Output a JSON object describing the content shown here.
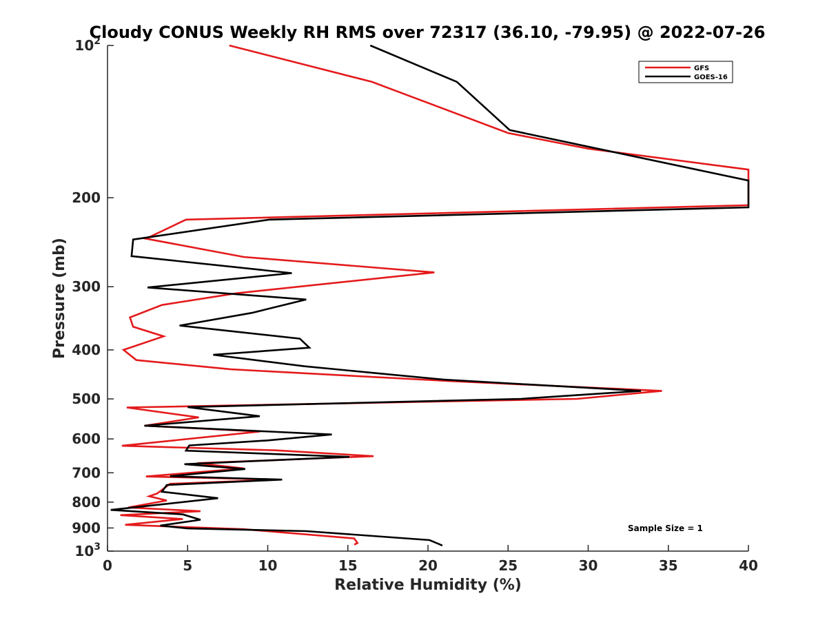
{
  "chart_data": {
    "type": "line",
    "title": "Cloudy CONUS Weekly RH RMS over 72317 (36.10, -79.95) @ 2022-07-26",
    "xlabel": "Relative Humidity (%)",
    "ylabel": "Pressure (mb)",
    "xlim": [
      0,
      40
    ],
    "ylim": [
      100,
      1000
    ],
    "y_scale": "log",
    "y_reversed": true,
    "grid": false,
    "legend_position": "top-right",
    "x_ticks": [
      "0",
      "5",
      "10",
      "15",
      "20",
      "25",
      "30",
      "35",
      "40"
    ],
    "y_ticks": [
      {
        "value": 100,
        "base": "10",
        "exp": "2"
      },
      {
        "value": 200,
        "label": "200"
      },
      {
        "value": 300,
        "label": "300"
      },
      {
        "value": 400,
        "label": "400"
      },
      {
        "value": 500,
        "label": "500"
      },
      {
        "value": 600,
        "label": "600"
      },
      {
        "value": 700,
        "label": "700"
      },
      {
        "value": 800,
        "label": "800"
      },
      {
        "value": 900,
        "label": "900"
      },
      {
        "value": 1000,
        "base": "10",
        "exp": "3"
      }
    ],
    "annotation": "Sample Size = 1",
    "series": [
      {
        "name": "GFS",
        "color": "#e41a1c",
        "points": [
          [
            7.6,
            100
          ],
          [
            16.5,
            118
          ],
          [
            25,
            149
          ],
          [
            30,
            160
          ],
          [
            40,
            176
          ],
          [
            40,
            207
          ],
          [
            4.9,
            221
          ],
          [
            2.4,
            241
          ],
          [
            8.5,
            262
          ],
          [
            20.4,
            281
          ],
          [
            8.1,
            309
          ],
          [
            3.4,
            326
          ],
          [
            1.4,
            345
          ],
          [
            1.6,
            360
          ],
          [
            3.5,
            376
          ],
          [
            1.0,
            400
          ],
          [
            1.8,
            419
          ],
          [
            7.7,
            437
          ],
          [
            21.4,
            461
          ],
          [
            34.6,
            482
          ],
          [
            29.3,
            500
          ],
          [
            1.2,
            520
          ],
          [
            5.7,
            544
          ],
          [
            2.3,
            565
          ],
          [
            9.5,
            580
          ],
          [
            0.9,
            619
          ],
          [
            10.5,
            632
          ],
          [
            16.6,
            649
          ],
          [
            5.6,
            670
          ],
          [
            8.5,
            686
          ],
          [
            2.4,
            712
          ],
          [
            10.6,
            722
          ],
          [
            3.9,
            736
          ],
          [
            3.1,
            769
          ],
          [
            2.6,
            779
          ],
          [
            3.7,
            794
          ],
          [
            1.3,
            820
          ],
          [
            5.8,
            834
          ],
          [
            0.8,
            849
          ],
          [
            4.7,
            864
          ],
          [
            1.1,
            887
          ],
          [
            8.5,
            905
          ],
          [
            15.4,
            944
          ],
          [
            15.6,
            964
          ],
          [
            15.4,
            971
          ]
        ]
      },
      {
        "name": "GOES-16",
        "color": "#000000",
        "points": [
          [
            16.4,
            100
          ],
          [
            21.8,
            118
          ],
          [
            25.1,
            147
          ],
          [
            40,
            185
          ],
          [
            40,
            209
          ],
          [
            10.1,
            221
          ],
          [
            1.6,
            242
          ],
          [
            1.5,
            261
          ],
          [
            11.5,
            282
          ],
          [
            2.5,
            301
          ],
          [
            12.4,
            318
          ],
          [
            9.0,
            338
          ],
          [
            4.5,
            358
          ],
          [
            12.0,
            380
          ],
          [
            12.6,
            396
          ],
          [
            6.6,
            409
          ],
          [
            12.3,
            431
          ],
          [
            21.0,
            458
          ],
          [
            33.3,
            482
          ],
          [
            25.8,
            500
          ],
          [
            5.0,
            519
          ],
          [
            9.5,
            541
          ],
          [
            2.3,
            565
          ],
          [
            14.0,
            588
          ],
          [
            10.0,
            604
          ],
          [
            5.1,
            618
          ],
          [
            4.9,
            633
          ],
          [
            15.1,
            651
          ],
          [
            4.8,
            673
          ],
          [
            8.6,
            688
          ],
          [
            3.9,
            711
          ],
          [
            10.9,
            722
          ],
          [
            3.7,
            740
          ],
          [
            3.4,
            763
          ],
          [
            6.9,
            786
          ],
          [
            0.2,
            829
          ],
          [
            4.7,
            846
          ],
          [
            5.8,
            867
          ],
          [
            3.3,
            890
          ],
          [
            5.0,
            902
          ],
          [
            12.4,
            913
          ],
          [
            20.1,
            951
          ],
          [
            20.9,
            975
          ]
        ]
      }
    ]
  }
}
